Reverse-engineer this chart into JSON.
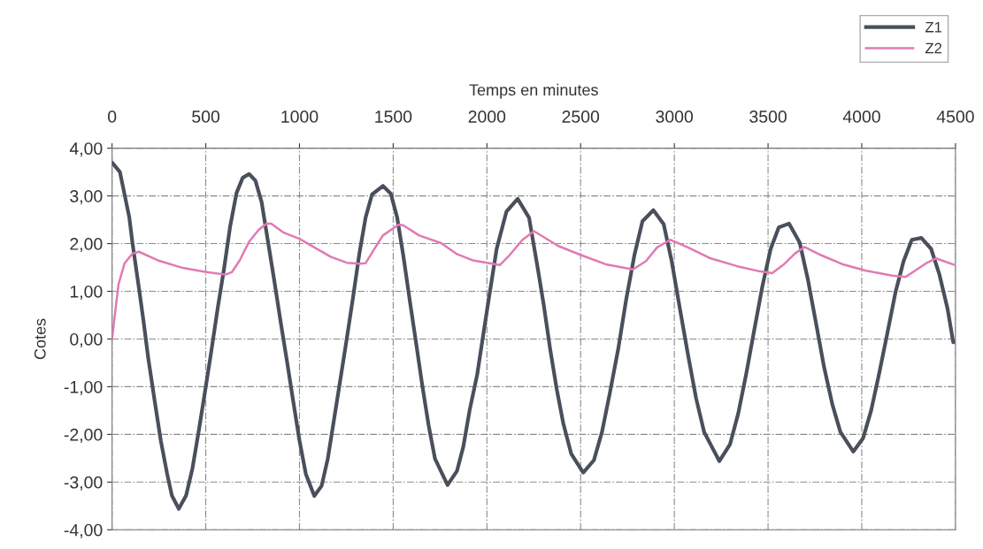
{
  "chart_data": {
    "type": "line",
    "xlabel": "Temps en minutes",
    "ylabel": "Cotes",
    "xlim": [
      0,
      4500
    ],
    "xticks": [
      0,
      500,
      1000,
      1500,
      2000,
      2500,
      3000,
      3500,
      4000,
      4500
    ],
    "ylim": [
      -4,
      4
    ],
    "yticks": [
      {
        "value": 4,
        "label": "4,00"
      },
      {
        "value": 3,
        "label": "3,00"
      },
      {
        "value": 2,
        "label": "2,00"
      },
      {
        "value": 1,
        "label": "1,00"
      },
      {
        "value": 0,
        "label": "0,00"
      },
      {
        "value": -1,
        "label": "-1,00"
      },
      {
        "value": -2,
        "label": "-2,00"
      },
      {
        "value": -3,
        "label": "-3,00"
      },
      {
        "value": -4,
        "label": "-4,00"
      }
    ],
    "grid": true,
    "legend": "top right",
    "series": [
      {
        "name": "Z1",
        "color": "#4a4f5c",
        "x": [
          0,
          42,
          92,
          109,
          143,
          168,
          193,
          227,
          260,
          294,
          319,
          356,
          395,
          429,
          462,
          496,
          529,
          563,
          597,
          630,
          664,
          697,
          731,
          765,
          798,
          832,
          866,
          899,
          933,
          966,
          1000,
          1034,
          1079,
          1118,
          1151,
          1185,
          1218,
          1252,
          1286,
          1319,
          1353,
          1387,
          1445,
          1487,
          1521,
          1555,
          1588,
          1622,
          1655,
          1689,
          1723,
          1790,
          1840,
          1874,
          1908,
          1948,
          2000,
          2052,
          2104,
          2164,
          2225,
          2268,
          2303,
          2337,
          2372,
          2407,
          2450,
          2514,
          2571,
          2614,
          2657,
          2701,
          2744,
          2787,
          2830,
          2888,
          2943,
          2986,
          3029,
          3073,
          3116,
          3159,
          3240,
          3297,
          3341,
          3384,
          3427,
          3470,
          3514,
          3557,
          3612,
          3669,
          3713,
          3756,
          3799,
          3843,
          3886,
          3955,
          4007,
          4050,
          4093,
          4137,
          4180,
          4223,
          4267,
          4318,
          4370,
          4413,
          4457,
          4488
        ],
        "values": [
          3.7,
          3.5,
          2.55,
          2.01,
          1.08,
          0.37,
          -0.4,
          -1.29,
          -2.13,
          -2.83,
          -3.28,
          -3.56,
          -3.28,
          -2.71,
          -1.94,
          -1.1,
          -0.27,
          0.63,
          1.46,
          2.36,
          3.06,
          3.38,
          3.46,
          3.32,
          2.87,
          2.04,
          1.21,
          0.37,
          -0.46,
          -1.29,
          -2.13,
          -2.83,
          -3.29,
          -3.08,
          -2.51,
          -1.67,
          -0.85,
          0.0,
          0.88,
          1.78,
          2.55,
          3.03,
          3.21,
          3.05,
          2.55,
          1.72,
          0.82,
          -0.08,
          -0.97,
          -1.81,
          -2.51,
          -3.06,
          -2.77,
          -2.26,
          -1.49,
          -0.75,
          0.59,
          1.89,
          2.67,
          2.94,
          2.54,
          1.56,
          0.72,
          -0.2,
          -1.04,
          -1.76,
          -2.41,
          -2.8,
          -2.54,
          -1.95,
          -1.11,
          -0.2,
          0.85,
          1.76,
          2.47,
          2.7,
          2.41,
          1.63,
          0.65,
          -0.33,
          -1.24,
          -1.95,
          -2.56,
          -2.21,
          -1.56,
          -0.72,
          0.2,
          1.11,
          1.89,
          2.34,
          2.42,
          2.02,
          1.24,
          0.33,
          -0.59,
          -1.37,
          -1.95,
          -2.36,
          -2.08,
          -1.5,
          -0.72,
          0.13,
          0.98,
          1.63,
          2.08,
          2.12,
          1.89,
          1.37,
          0.65,
          -0.07
        ]
      },
      {
        "name": "Z2",
        "color": "#e07ab4",
        "x": [
          0,
          34,
          67,
          109,
          143,
          244,
          378,
          496,
          605,
          639,
          681,
          731,
          782,
          824,
          849,
          916,
          1000,
          1084,
          1168,
          1252,
          1319,
          1353,
          1403,
          1445,
          1529,
          1555,
          1639,
          1756,
          1840,
          1924,
          2069,
          2121,
          2190,
          2251,
          2381,
          2502,
          2640,
          2779,
          2848,
          2908,
          2978,
          3073,
          3194,
          3332,
          3453,
          3522,
          3583,
          3643,
          3695,
          3782,
          3903,
          4024,
          4163,
          4232,
          4284,
          4344,
          4396,
          4491
        ],
        "values": [
          0.0,
          1.14,
          1.59,
          1.79,
          1.83,
          1.65,
          1.49,
          1.41,
          1.35,
          1.4,
          1.65,
          2.04,
          2.29,
          2.42,
          2.42,
          2.23,
          2.1,
          1.91,
          1.72,
          1.6,
          1.58,
          1.59,
          1.91,
          2.17,
          2.4,
          2.38,
          2.17,
          2.01,
          1.78,
          1.65,
          1.55,
          1.76,
          2.08,
          2.26,
          1.95,
          1.76,
          1.56,
          1.46,
          1.63,
          1.92,
          2.08,
          1.92,
          1.69,
          1.53,
          1.42,
          1.38,
          1.56,
          1.79,
          1.93,
          1.76,
          1.56,
          1.43,
          1.33,
          1.3,
          1.43,
          1.59,
          1.69,
          1.56
        ]
      }
    ]
  }
}
